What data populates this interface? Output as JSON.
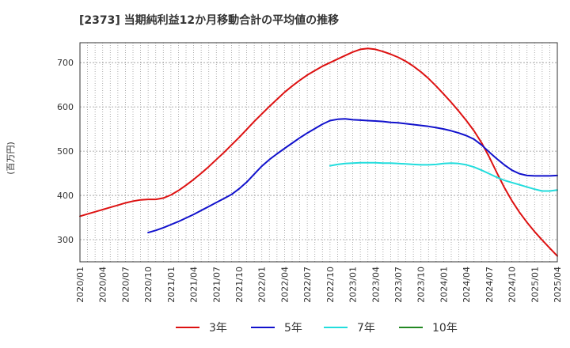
{
  "chart_data": {
    "type": "line",
    "title": "[2373]  当期純利益12か月移動合計の平均値の推移",
    "ylabel": "(百万円)",
    "xlabel": "",
    "ylim": [
      250,
      745
    ],
    "yticks": [
      300,
      400,
      500,
      600,
      700
    ],
    "ytick_labels": [
      "300",
      "400",
      "500",
      "600",
      "700"
    ],
    "x_ticks": [
      "2020/01",
      "2020/04",
      "2020/07",
      "2020/10",
      "2021/01",
      "2021/04",
      "2021/07",
      "2021/10",
      "2022/01",
      "2022/04",
      "2022/07",
      "2022/10",
      "2023/01",
      "2023/04",
      "2023/07",
      "2023/10",
      "2024/01",
      "2024/04",
      "2024/07",
      "2024/10",
      "2025/01",
      "2025/04"
    ],
    "grid": true,
    "legend_position": "bottom",
    "series": [
      {
        "name": "3年",
        "color": "#dd1111",
        "points": [
          [
            "2020/01",
            353
          ],
          [
            "2020/02",
            358
          ],
          [
            "2020/03",
            363
          ],
          [
            "2020/04",
            368
          ],
          [
            "2020/05",
            373
          ],
          [
            "2020/06",
            378
          ],
          [
            "2020/07",
            383
          ],
          [
            "2020/08",
            387
          ],
          [
            "2020/09",
            390
          ],
          [
            "2020/10",
            391
          ],
          [
            "2020/11",
            391
          ],
          [
            "2020/12",
            394
          ],
          [
            "2021/01",
            401
          ],
          [
            "2021/02",
            411
          ],
          [
            "2021/03",
            423
          ],
          [
            "2021/04",
            436
          ],
          [
            "2021/05",
            450
          ],
          [
            "2021/06",
            465
          ],
          [
            "2021/07",
            481
          ],
          [
            "2021/08",
            497
          ],
          [
            "2021/09",
            514
          ],
          [
            "2021/10",
            531
          ],
          [
            "2021/11",
            549
          ],
          [
            "2021/12",
            567
          ],
          [
            "2022/01",
            584
          ],
          [
            "2022/02",
            601
          ],
          [
            "2022/03",
            617
          ],
          [
            "2022/04",
            633
          ],
          [
            "2022/05",
            647
          ],
          [
            "2022/06",
            660
          ],
          [
            "2022/07",
            672
          ],
          [
            "2022/08",
            682
          ],
          [
            "2022/09",
            692
          ],
          [
            "2022/10",
            700
          ],
          [
            "2022/11",
            708
          ],
          [
            "2022/12",
            716
          ],
          [
            "2023/01",
            724
          ],
          [
            "2023/02",
            730
          ],
          [
            "2023/03",
            732
          ],
          [
            "2023/04",
            730
          ],
          [
            "2023/05",
            725
          ],
          [
            "2023/06",
            719
          ],
          [
            "2023/07",
            712
          ],
          [
            "2023/08",
            703
          ],
          [
            "2023/09",
            692
          ],
          [
            "2023/10",
            679
          ],
          [
            "2023/11",
            664
          ],
          [
            "2023/12",
            647
          ],
          [
            "2024/01",
            629
          ],
          [
            "2024/02",
            610
          ],
          [
            "2024/03",
            590
          ],
          [
            "2024/04",
            569
          ],
          [
            "2024/05",
            546
          ],
          [
            "2024/06",
            519
          ],
          [
            "2024/07",
            487
          ],
          [
            "2024/08",
            452
          ],
          [
            "2024/09",
            418
          ],
          [
            "2024/10",
            388
          ],
          [
            "2024/11",
            362
          ],
          [
            "2024/12",
            339
          ],
          [
            "2025/01",
            318
          ],
          [
            "2025/02",
            299
          ],
          [
            "2025/03",
            281
          ],
          [
            "2025/04",
            263
          ]
        ]
      },
      {
        "name": "5年",
        "color": "#1111cc",
        "points": [
          [
            "2020/10",
            316
          ],
          [
            "2020/11",
            321
          ],
          [
            "2020/12",
            327
          ],
          [
            "2021/01",
            334
          ],
          [
            "2021/02",
            341
          ],
          [
            "2021/03",
            349
          ],
          [
            "2021/04",
            357
          ],
          [
            "2021/05",
            366
          ],
          [
            "2021/06",
            375
          ],
          [
            "2021/07",
            384
          ],
          [
            "2021/08",
            393
          ],
          [
            "2021/09",
            402
          ],
          [
            "2021/10",
            415
          ],
          [
            "2021/11",
            430
          ],
          [
            "2021/12",
            448
          ],
          [
            "2022/01",
            466
          ],
          [
            "2022/02",
            481
          ],
          [
            "2022/03",
            494
          ],
          [
            "2022/04",
            506
          ],
          [
            "2022/05",
            518
          ],
          [
            "2022/06",
            530
          ],
          [
            "2022/07",
            541
          ],
          [
            "2022/08",
            551
          ],
          [
            "2022/09",
            561
          ],
          [
            "2022/10",
            569
          ],
          [
            "2022/11",
            572
          ],
          [
            "2022/12",
            573
          ],
          [
            "2023/01",
            571
          ],
          [
            "2023/02",
            570
          ],
          [
            "2023/03",
            569
          ],
          [
            "2023/04",
            568
          ],
          [
            "2023/05",
            567
          ],
          [
            "2023/06",
            565
          ],
          [
            "2023/07",
            564
          ],
          [
            "2023/08",
            562
          ],
          [
            "2023/09",
            560
          ],
          [
            "2023/10",
            558
          ],
          [
            "2023/11",
            556
          ],
          [
            "2023/12",
            553
          ],
          [
            "2024/01",
            550
          ],
          [
            "2024/02",
            546
          ],
          [
            "2024/03",
            541
          ],
          [
            "2024/04",
            535
          ],
          [
            "2024/05",
            527
          ],
          [
            "2024/06",
            514
          ],
          [
            "2024/07",
            498
          ],
          [
            "2024/08",
            483
          ],
          [
            "2024/09",
            469
          ],
          [
            "2024/10",
            457
          ],
          [
            "2024/11",
            449
          ],
          [
            "2024/12",
            445
          ],
          [
            "2025/01",
            444
          ],
          [
            "2025/02",
            444
          ],
          [
            "2025/03",
            444
          ],
          [
            "2025/04",
            445
          ]
        ]
      },
      {
        "name": "7年",
        "color": "#22dddd",
        "points": [
          [
            "2022/10",
            467
          ],
          [
            "2022/11",
            470
          ],
          [
            "2022/12",
            472
          ],
          [
            "2023/01",
            473
          ],
          [
            "2023/02",
            474
          ],
          [
            "2023/03",
            474
          ],
          [
            "2023/04",
            474
          ],
          [
            "2023/05",
            473
          ],
          [
            "2023/06",
            473
          ],
          [
            "2023/07",
            472
          ],
          [
            "2023/08",
            471
          ],
          [
            "2023/09",
            470
          ],
          [
            "2023/10",
            469
          ],
          [
            "2023/11",
            469
          ],
          [
            "2023/12",
            470
          ],
          [
            "2024/01",
            472
          ],
          [
            "2024/02",
            473
          ],
          [
            "2024/03",
            472
          ],
          [
            "2024/04",
            469
          ],
          [
            "2024/05",
            464
          ],
          [
            "2024/06",
            457
          ],
          [
            "2024/07",
            449
          ],
          [
            "2024/08",
            441
          ],
          [
            "2024/09",
            434
          ],
          [
            "2024/10",
            429
          ],
          [
            "2024/11",
            424
          ],
          [
            "2024/12",
            419
          ],
          [
            "2025/01",
            414
          ],
          [
            "2025/02",
            410
          ],
          [
            "2025/03",
            410
          ],
          [
            "2025/04",
            412
          ]
        ]
      },
      {
        "name": "10年",
        "color": "#228822",
        "points": []
      }
    ]
  }
}
